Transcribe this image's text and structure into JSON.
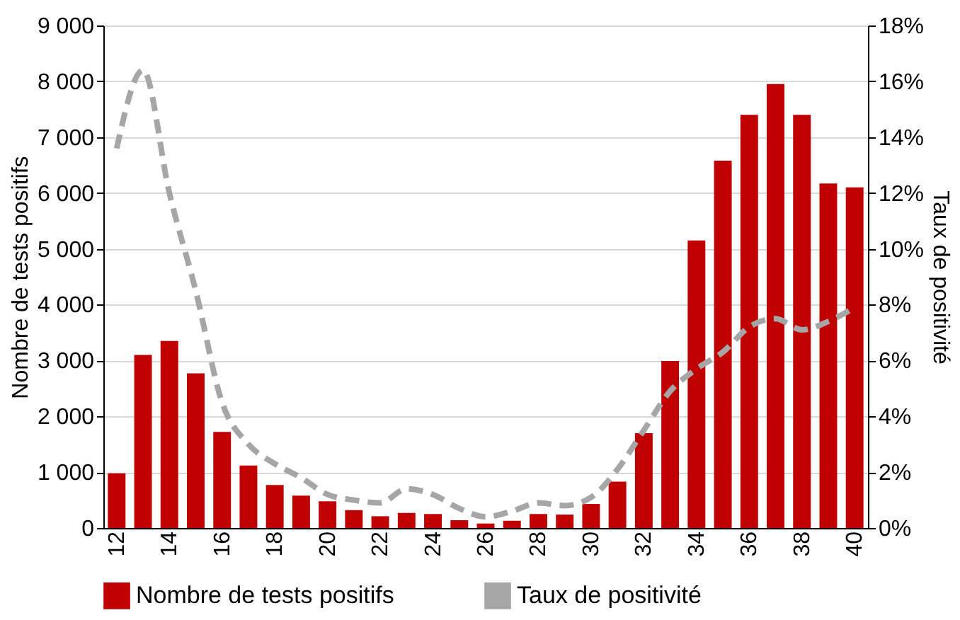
{
  "chart_data": {
    "type": "bar",
    "categories": [
      "12",
      null,
      "14",
      null,
      "16",
      null,
      "18",
      null,
      "20",
      null,
      "22",
      null,
      "24",
      null,
      "26",
      null,
      "28",
      null,
      "30",
      null,
      "32",
      null,
      "34",
      null,
      "36",
      null,
      "38",
      null,
      "40"
    ],
    "ylabel": "Nombre de tests positifs",
    "y2label": "Taux de positivité",
    "series": [
      {
        "name": "Nombre de tests positifs",
        "color": "#c00000",
        "values": [
          980,
          3100,
          3350,
          2770,
          1720,
          1120,
          770,
          580,
          480,
          320,
          210,
          270,
          250,
          140,
          80,
          130,
          250,
          240,
          430,
          830,
          1700,
          2990,
          5150,
          6580,
          7400,
          7950,
          7400,
          6170,
          6100
        ]
      },
      {
        "name": "Taux de positivité",
        "type": "line",
        "axis": "y2",
        "color": "#a6a6a6",
        "line_style": "dashed",
        "values": [
          13.6,
          16.4,
          12.0,
          8.5,
          4.5,
          3.0,
          2.3,
          1.8,
          1.2,
          1.0,
          0.9,
          1.4,
          1.2,
          0.7,
          0.4,
          0.6,
          0.9,
          0.8,
          1.1,
          2.1,
          3.5,
          4.9,
          5.7,
          6.3,
          7.2,
          7.5,
          7.1,
          7.4,
          7.9
        ]
      }
    ],
    "ylim": [
      0,
      9000
    ],
    "yticks": [
      0,
      {
        "value": 1000,
        "label": "1 000"
      },
      {
        "value": 2000,
        "label": "2 000"
      },
      {
        "value": 3000,
        "label": "3 000"
      },
      {
        "value": 4000,
        "label": "4 000"
      },
      {
        "value": 5000,
        "label": "5 000"
      },
      {
        "value": 6000,
        "label": "6 000"
      },
      {
        "value": 7000,
        "label": "7 000"
      },
      {
        "value": 8000,
        "label": "8 000"
      },
      {
        "value": 9000,
        "label": "9 000"
      }
    ],
    "y2lim": [
      0,
      18
    ],
    "y2ticks": [
      {
        "value": 0,
        "label": "0%"
      },
      {
        "value": 2,
        "label": "2%"
      },
      {
        "value": 4,
        "label": "4%"
      },
      {
        "value": 6,
        "label": "6%"
      },
      {
        "value": 8,
        "label": "8%"
      },
      {
        "value": 10,
        "label": "10%"
      },
      {
        "value": 12,
        "label": "12%"
      },
      {
        "value": 14,
        "label": "14%"
      },
      {
        "value": 16,
        "label": "16%"
      },
      {
        "value": 18,
        "label": "18%"
      }
    ],
    "grid": "y",
    "legend": "bottom",
    "marker": "none"
  }
}
